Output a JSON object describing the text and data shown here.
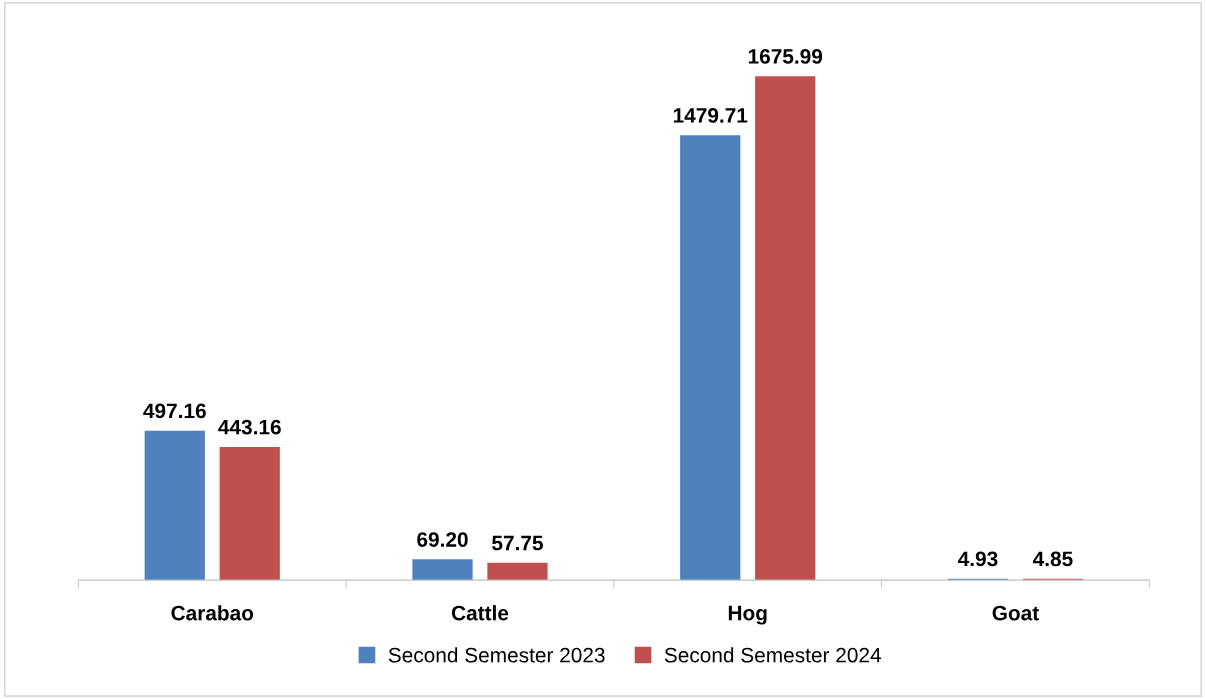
{
  "chart_data": {
    "type": "bar",
    "categories": [
      "Carabao",
      "Cattle",
      "Hog",
      "Goat"
    ],
    "series": [
      {
        "name": "Second Semester 2023",
        "color": "#4f81bd",
        "values": [
          497.16,
          69.2,
          1479.71,
          4.93
        ],
        "value_labels": [
          "497.16",
          "69.20",
          "1479.71",
          "4.93"
        ]
      },
      {
        "name": "Second Semester 2024",
        "color": "#c0504d",
        "values": [
          443.16,
          57.75,
          1675.99,
          4.85
        ],
        "value_labels": [
          "443.16",
          "57.75",
          "1675.99",
          "4.85"
        ]
      }
    ],
    "legend": "bottom",
    "grid": false
  }
}
